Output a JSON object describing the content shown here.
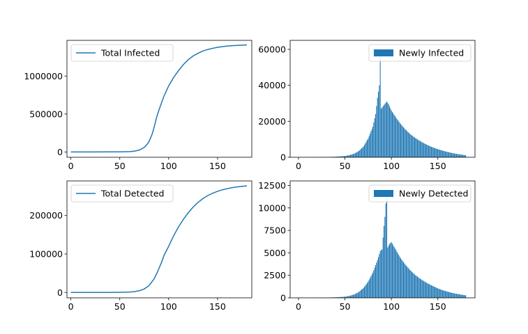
{
  "colors": {
    "series": "#1f77b4",
    "axis": "#000000",
    "legend_border": "#cccccc",
    "background": "#ffffff"
  },
  "chart_data": [
    {
      "type": "line",
      "legend": "Total Infected",
      "legend_position": "upper-left",
      "grid": false,
      "xlim": [
        -4,
        185
      ],
      "ylim": [
        -70000,
        1470000
      ],
      "xticks": [
        0,
        50,
        100,
        150
      ],
      "yticks": [
        0,
        500000,
        1000000
      ],
      "x": [
        0,
        20,
        40,
        50,
        60,
        65,
        70,
        75,
        78,
        80,
        83,
        85,
        88,
        90,
        95,
        100,
        105,
        110,
        115,
        120,
        125,
        130,
        135,
        140,
        145,
        150,
        155,
        160,
        165,
        170,
        175,
        180
      ],
      "y": [
        0,
        0,
        500,
        1500,
        5000,
        10000,
        25000,
        60000,
        100000,
        140000,
        230000,
        320000,
        470000,
        550000,
        730000,
        870000,
        980000,
        1070000,
        1150000,
        1215000,
        1265000,
        1300000,
        1330000,
        1350000,
        1365000,
        1378000,
        1388000,
        1395000,
        1400000,
        1404000,
        1407000,
        1410000
      ]
    },
    {
      "type": "bar",
      "legend": "Newly Infected",
      "legend_position": "upper-right",
      "grid": false,
      "xlim": [
        -9,
        190
      ],
      "ylim": [
        0,
        65000
      ],
      "xticks": [
        0,
        50,
        100,
        150
      ],
      "yticks": [
        0,
        20000,
        40000,
        60000
      ],
      "peak": [
        88,
        57000
      ],
      "x": [
        0,
        20,
        30,
        40,
        50,
        55,
        60,
        65,
        70,
        75,
        80,
        83,
        85,
        87,
        88,
        89,
        92,
        95,
        97,
        100,
        105,
        110,
        115,
        120,
        125,
        130,
        135,
        140,
        145,
        150,
        155,
        160,
        165,
        170,
        175,
        180
      ],
      "y": [
        0,
        0,
        100,
        300,
        700,
        1200,
        2000,
        3500,
        6000,
        10500,
        17000,
        24000,
        33000,
        40000,
        57000,
        27000,
        29000,
        31000,
        29500,
        26000,
        22000,
        18500,
        15500,
        13000,
        11000,
        9300,
        7800,
        6500,
        5400,
        4500,
        3700,
        3000,
        2400,
        1900,
        1500,
        1100
      ]
    },
    {
      "type": "line",
      "legend": "Total Detected",
      "legend_position": "upper-left",
      "grid": false,
      "xlim": [
        -4,
        185
      ],
      "ylim": [
        -14000,
        290000
      ],
      "xticks": [
        0,
        50,
        100,
        150
      ],
      "yticks": [
        0,
        100000,
        200000
      ],
      "x": [
        0,
        20,
        40,
        50,
        60,
        65,
        70,
        75,
        80,
        85,
        88,
        90,
        93,
        95,
        97,
        100,
        105,
        110,
        115,
        120,
        125,
        130,
        135,
        140,
        145,
        150,
        155,
        160,
        165,
        170,
        175,
        180
      ],
      "y": [
        0,
        0,
        100,
        300,
        1000,
        2000,
        4500,
        9000,
        18000,
        35000,
        50000,
        62000,
        80000,
        95000,
        105000,
        120000,
        147000,
        170000,
        190000,
        207000,
        222000,
        234000,
        244000,
        252000,
        258000,
        263000,
        267000,
        270000,
        272500,
        274500,
        276000,
        277000
      ]
    },
    {
      "type": "bar",
      "legend": "Newly Detected",
      "legend_position": "upper-right",
      "grid": false,
      "xlim": [
        -9,
        190
      ],
      "ylim": [
        0,
        13000
      ],
      "xticks": [
        0,
        50,
        100,
        150
      ],
      "yticks": [
        0,
        2500,
        5000,
        7500,
        10000,
        12500
      ],
      "peak": [
        95,
        11500
      ],
      "x": [
        0,
        20,
        30,
        40,
        50,
        55,
        60,
        65,
        70,
        75,
        80,
        85,
        88,
        90,
        92,
        93,
        94,
        95,
        96,
        98,
        100,
        105,
        110,
        115,
        120,
        125,
        130,
        135,
        140,
        145,
        150,
        155,
        160,
        165,
        170,
        175,
        180
      ],
      "y": [
        0,
        0,
        20,
        60,
        120,
        220,
        380,
        650,
        1100,
        1800,
        2800,
        4200,
        5200,
        5400,
        8000,
        9000,
        10500,
        11500,
        5600,
        6000,
        6200,
        5300,
        4400,
        3700,
        3100,
        2600,
        2200,
        1850,
        1550,
        1300,
        1050,
        850,
        700,
        560,
        450,
        360,
        280
      ]
    }
  ]
}
